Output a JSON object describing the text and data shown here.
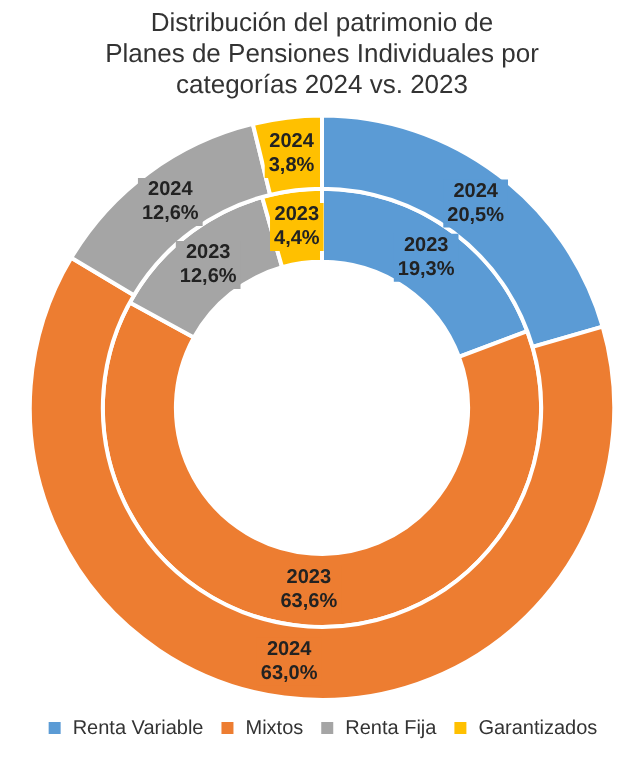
{
  "chart_data": {
    "type": "donut",
    "title": "Distribución del patrimonio de Planes de Pensiones Individuales por categorías 2024 vs. 2023",
    "categories": [
      "Renta Variable",
      "Mixtos",
      "Renta Fija",
      "Garantizados"
    ],
    "colors": [
      "#5b9bd5",
      "#ed7d31",
      "#a5a5a5",
      "#ffc000"
    ],
    "series": [
      {
        "name": "2024",
        "values": [
          20.5,
          63.0,
          12.6,
          3.8
        ],
        "value_labels": [
          "20,5%",
          "63,0%",
          "12,6%",
          "3,8%"
        ]
      },
      {
        "name": "2023",
        "values": [
          19.3,
          63.6,
          12.6,
          4.4
        ],
        "value_labels": [
          "19,3%",
          "63,6%",
          "12,6%",
          "4,4%"
        ]
      }
    ],
    "legend": "bottom"
  }
}
